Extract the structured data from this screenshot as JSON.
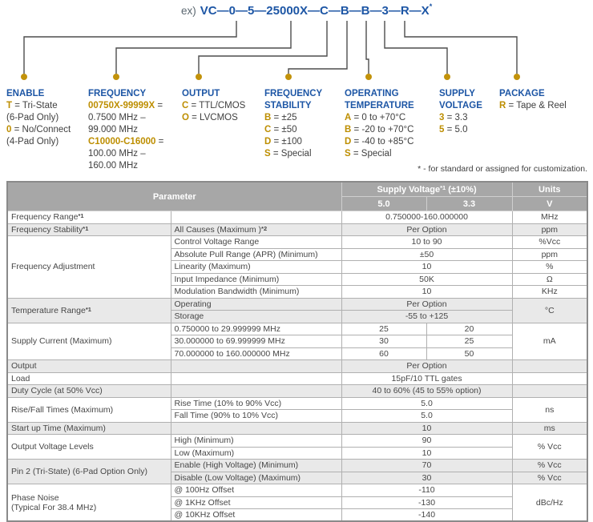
{
  "ordering": {
    "example_prefix": "ex)",
    "part_number": "VC—0—5—25000X—C—B—B—3—R—X",
    "part_number_star": "*",
    "footnote": "* - for standard or assigned for customization.",
    "categories": [
      {
        "title": [
          "ENABLE"
        ],
        "lines": [
          {
            "code": "T",
            "rest": " = Tri-State"
          },
          {
            "code": "",
            "rest": "(6-Pad Only)"
          },
          {
            "code": "0",
            "rest": " = No/Connect"
          },
          {
            "code": "",
            "rest": "(4-Pad Only)"
          }
        ]
      },
      {
        "title": [
          "FREQUENCY"
        ],
        "lines": [
          {
            "code": "00750X-99999X",
            "rest": " ="
          },
          {
            "code": "",
            "rest": "0.7500 MHz –"
          },
          {
            "code": "",
            "rest": "99.000 MHz"
          },
          {
            "code": "C10000-C16000",
            "rest": " ="
          },
          {
            "code": "",
            "rest": "100.00 MHz –"
          },
          {
            "code": "",
            "rest": "160.00 MHz"
          }
        ]
      },
      {
        "title": [
          "OUTPUT"
        ],
        "lines": [
          {
            "code": "C",
            "rest": " = TTL/CMOS"
          },
          {
            "code": "O",
            "rest": " = LVCMOS"
          }
        ]
      },
      {
        "title": [
          "FREQUENCY",
          "STABILITY"
        ],
        "lines": [
          {
            "code": "B",
            "rest": " = ±25"
          },
          {
            "code": "C",
            "rest": " = ±50"
          },
          {
            "code": "D",
            "rest": " = ±100"
          },
          {
            "code": "S",
            "rest": " = Special"
          }
        ]
      },
      {
        "title": [
          "OPERATING",
          "TEMPERATURE"
        ],
        "lines": [
          {
            "code": "A",
            "rest": " = 0 to +70°C"
          },
          {
            "code": "B",
            "rest": " = -20 to +70°C"
          },
          {
            "code": "D",
            "rest": " = -40 to +85°C"
          },
          {
            "code": "S",
            "rest": " = Special"
          }
        ]
      },
      {
        "title": [
          "SUPPLY",
          "VOLTAGE"
        ],
        "lines": [
          {
            "code": "3",
            "rest": " = 3.3"
          },
          {
            "code": "5",
            "rest": " = 5.0"
          }
        ]
      },
      {
        "title": [
          "PACKAGE"
        ],
        "lines": [
          {
            "code": "R",
            "rest": " = Tape & Reel"
          }
        ]
      }
    ]
  },
  "table": {
    "header": {
      "parameter": "Parameter",
      "supply_voltage": "Supply Voltage",
      "supply_voltage_sup": "*1",
      "supply_voltage_suffix": " (±10%)",
      "v50": "5.0",
      "v33": "3.3",
      "units": "Units",
      "units_v": "V"
    },
    "groups": [
      {
        "param": [
          "Frequency Range"
        ],
        "param_sup": "*1",
        "shade": false,
        "rows": [
          {
            "sub": "",
            "merged": "0.750000-160.000000",
            "unit": "MHz"
          }
        ]
      },
      {
        "param": [
          "Frequency Stability"
        ],
        "param_sup": "*1",
        "shade": true,
        "rows": [
          {
            "sub": "All Causes (Maximum )",
            "sub_sup": "*2",
            "merged": "Per Option",
            "unit": "ppm"
          }
        ]
      },
      {
        "param": [
          "Frequency Adjustment"
        ],
        "shade": false,
        "rows": [
          {
            "sub": "Control Voltage Range",
            "merged": "10 to 90",
            "unit": "%Vcc"
          },
          {
            "sub": "Absolute Pull Range (APR) (Minimum)",
            "merged": "±50",
            "unit": "ppm"
          },
          {
            "sub": "Linearity (Maximum)",
            "merged": "10",
            "unit": "%"
          },
          {
            "sub": "Input Impedance (Minimum)",
            "merged": "50K",
            "unit": "Ω"
          },
          {
            "sub": "Modulation Bandwidth (Minimum)",
            "merged": "10",
            "unit": "KHz"
          }
        ]
      },
      {
        "param": [
          "Temperature Range"
        ],
        "param_sup": "*1",
        "shade": true,
        "group_unit": "°C",
        "rows": [
          {
            "sub": "Operating",
            "merged": "Per Option"
          },
          {
            "sub": "Storage",
            "merged": "-55 to +125"
          }
        ]
      },
      {
        "param": [
          "Supply Current (Maximum)"
        ],
        "shade": false,
        "group_unit": "mA",
        "rows": [
          {
            "sub": "0.750000 to 29.999999 MHz",
            "v50": "25",
            "v33": "20"
          },
          {
            "sub": "30.000000 to 69.999999 MHz",
            "v50": "30",
            "v33": "25"
          },
          {
            "sub": "70.000000 to 160.000000 MHz",
            "v50": "60",
            "v33": "50"
          }
        ]
      },
      {
        "param": [
          "Output"
        ],
        "shade": true,
        "rows": [
          {
            "sub": "",
            "merged": "Per Option",
            "unit": ""
          }
        ]
      },
      {
        "param": [
          "Load"
        ],
        "shade": false,
        "rows": [
          {
            "sub": "",
            "merged": "15pF/10 TTL gates",
            "unit": ""
          }
        ]
      },
      {
        "param": [
          "Duty Cycle (at 50% Vcc)"
        ],
        "shade": true,
        "rows": [
          {
            "sub": "",
            "merged": "40 to 60% (45 to 55% option)",
            "unit": ""
          }
        ]
      },
      {
        "param": [
          "Rise/Fall Times (Maximum)"
        ],
        "shade": false,
        "group_unit": "ns",
        "rows": [
          {
            "sub": "Rise Time (10% to 90% Vcc)",
            "merged": "5.0"
          },
          {
            "sub": "Fall Time (90% to 10% Vcc)",
            "merged": "5.0"
          }
        ]
      },
      {
        "param": [
          "Start up Time (Maximum)"
        ],
        "shade": true,
        "rows": [
          {
            "sub": "",
            "merged": "10",
            "unit": "ms"
          }
        ]
      },
      {
        "param": [
          "Output Voltage Levels"
        ],
        "shade": false,
        "group_unit": "% Vcc",
        "rows": [
          {
            "sub": "High (Minimum)",
            "merged": "90"
          },
          {
            "sub": "Low (Maximum)",
            "merged": "10"
          }
        ]
      },
      {
        "param": [
          "Pin 2 (Tri-State) (6-Pad Option Only)"
        ],
        "shade": true,
        "rows": [
          {
            "sub": "Enable (High Voltage) (Minimum)",
            "merged": "70",
            "unit": "% Vcc"
          },
          {
            "sub": "Disable (Low Voltage) (Maximum)",
            "merged": "30",
            "unit": "% Vcc"
          }
        ]
      },
      {
        "param": [
          "Phase Noise",
          "(Typical For 38.4 MHz)"
        ],
        "shade": false,
        "group_unit": "dBc/Hz",
        "rows": [
          {
            "sub": "@ 100Hz Offset",
            "merged": "-110"
          },
          {
            "sub": "@ 1KHz Offset",
            "merged": "-130"
          },
          {
            "sub": "@ 10KHz Offset",
            "merged": "-140"
          }
        ]
      }
    ]
  },
  "colors": {
    "accent_blue": "#1d56a5",
    "accent_gold": "#bd8e00",
    "header_gray": "#a7a7a7",
    "row_shade": "#e9e9e9",
    "connector_dot": "#c2920b"
  }
}
